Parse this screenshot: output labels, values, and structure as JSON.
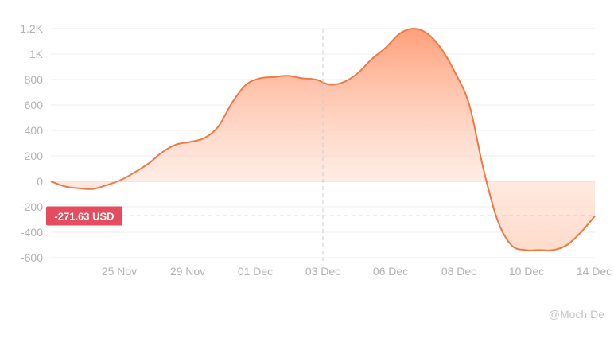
{
  "chart_data": {
    "type": "area",
    "y_ticks": [
      {
        "value": 1200,
        "label": "1.2K"
      },
      {
        "value": 1000,
        "label": "1K"
      },
      {
        "value": 800,
        "label": "800"
      },
      {
        "value": 600,
        "label": "600"
      },
      {
        "value": 400,
        "label": "400"
      },
      {
        "value": 200,
        "label": "200"
      },
      {
        "value": 0,
        "label": "0"
      },
      {
        "value": -200,
        "label": "-200"
      },
      {
        "value": -400,
        "label": "-400"
      },
      {
        "value": -600,
        "label": "-600"
      }
    ],
    "x_ticks": [
      "25 Nov",
      "29 Nov",
      "01 Dec",
      "03 Dec",
      "06 Dec",
      "08 Dec",
      "10 Dec",
      "14 Dec"
    ],
    "ylim": [
      -600,
      1200
    ],
    "grid": true,
    "series": [
      {
        "values": [
          0,
          -40,
          -55,
          -60,
          -30,
          10,
          70,
          140,
          230,
          290,
          310,
          340,
          430,
          620,
          760,
          810,
          820,
          830,
          810,
          800,
          760,
          780,
          850,
          960,
          1050,
          1160,
          1200,
          1160,
          1040,
          850,
          600,
          100,
          -300,
          -500,
          -540,
          -540,
          -540,
          -500,
          -400,
          -272
        ],
        "color": "#f07845"
      }
    ],
    "current_value": -271.63,
    "current_label": "-271.63 USD",
    "crosshair_x_label": "03 Dec",
    "colors": {
      "line": "#f07845",
      "badge": "#e54c5e",
      "grid": "#eeeeee",
      "zero": "#cfcfcf"
    }
  },
  "watermark": "@Moch De"
}
